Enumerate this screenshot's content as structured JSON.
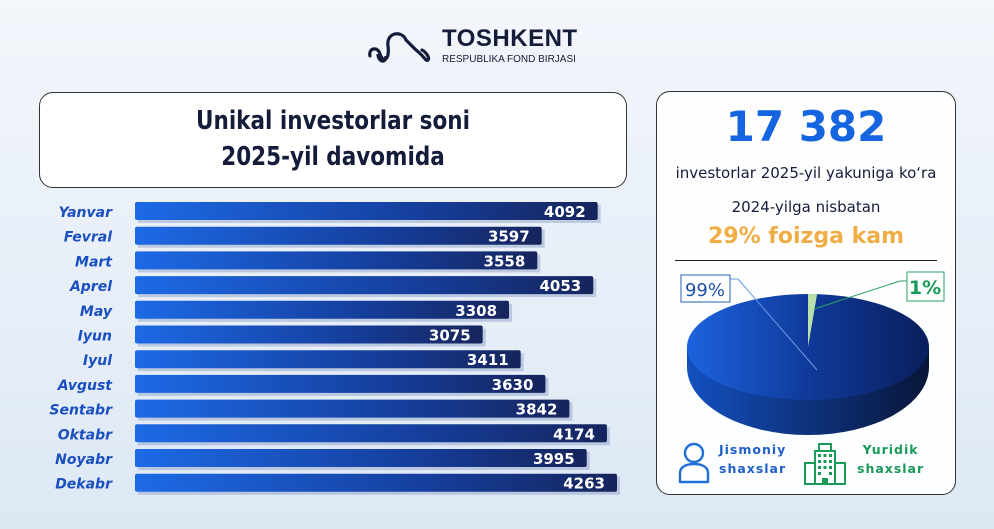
{
  "logo": {
    "title": "TOSHKENT",
    "subtitle": "RESPUBLIKA FOND BIRJASI"
  },
  "header": {
    "line1": "Unikal investorlar soni",
    "line2": "2025-yil davomida"
  },
  "chart_data": {
    "type": "bar",
    "orientation": "horizontal",
    "categories": [
      "Yanvar",
      "Fevral",
      "Mart",
      "Aprel",
      "May",
      "Iyun",
      "Iyul",
      "Avgust",
      "Sentabr",
      "Oktabr",
      "Noyabr",
      "Dekabr"
    ],
    "values": [
      4092,
      3597,
      3558,
      4053,
      3308,
      3075,
      3411,
      3630,
      3842,
      4174,
      3995,
      4263
    ],
    "title": "Unikal investorlar soni 2025-yil davomida",
    "xlim": [
      0,
      4263
    ],
    "grid": false,
    "bar_color": "#1a3b8f"
  },
  "pie_data": {
    "type": "pie",
    "slices": [
      {
        "label": "99%",
        "value": 99,
        "name": "Jismoniy shaxslar",
        "color": "#0f3a9a"
      },
      {
        "label": "1%",
        "value": 1,
        "name": "Yuridik shaxslar",
        "color": "#b8e0a8"
      }
    ]
  },
  "summary": {
    "total": "17 382",
    "line1": "investorlar 2025-yil yakuniga ko‘ra",
    "line2": "2024-yilga nisbatan",
    "line3": "29% foizga kam"
  },
  "legend": [
    {
      "line1": "Jismoniy",
      "line2": "shaxslar",
      "icon": "person-icon",
      "color": "#1f6fd6"
    },
    {
      "line1": "Yuridik",
      "line2": "shaxslar",
      "icon": "building-icon",
      "color": "#1a9a58"
    }
  ]
}
